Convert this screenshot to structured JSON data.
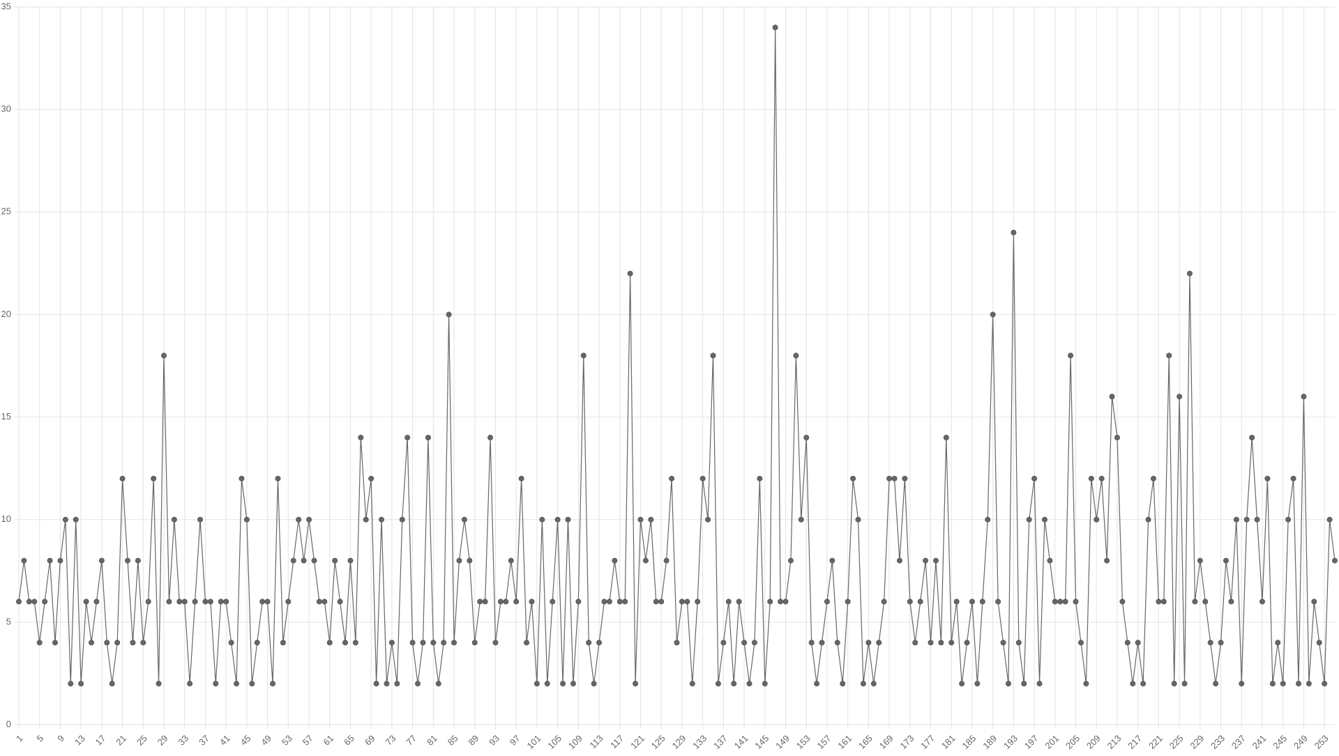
{
  "chart_data": {
    "type": "line",
    "color": "#666666",
    "grid": true,
    "ylim": [
      0,
      35
    ],
    "yticks": [
      0,
      5,
      10,
      15,
      20,
      25,
      30,
      35
    ],
    "categories": [
      1,
      null,
      null,
      null,
      5,
      null,
      null,
      null,
      9,
      null,
      null,
      null,
      13,
      null,
      null,
      null,
      17,
      null,
      null,
      null,
      21,
      null,
      null,
      null,
      25,
      null,
      null,
      null,
      29,
      null,
      null,
      null,
      33,
      null,
      null,
      null,
      37,
      null,
      null,
      null,
      41,
      null,
      null,
      null,
      45,
      null,
      null,
      null,
      49,
      null,
      null,
      null,
      53,
      null,
      null,
      null,
      57,
      null,
      null,
      null,
      61,
      null,
      null,
      null,
      65,
      null,
      null,
      null,
      69,
      null,
      null,
      null,
      73,
      null,
      null,
      null,
      77,
      null,
      null,
      null,
      81,
      null,
      null,
      null,
      85,
      null,
      null,
      null,
      89,
      null,
      null,
      null,
      93,
      null,
      null,
      null,
      97,
      null,
      null,
      null,
      101,
      null,
      null,
      null,
      105,
      null,
      null,
      null,
      109,
      null,
      null,
      null,
      113,
      null,
      null,
      null,
      117,
      null,
      null,
      null,
      121,
      null,
      null,
      null,
      125,
      null,
      null,
      null,
      129,
      null,
      null,
      null,
      133,
      null,
      null,
      null,
      137,
      null,
      null,
      null,
      141,
      null,
      null,
      null,
      145,
      null,
      null,
      null,
      149,
      null,
      null,
      null,
      153,
      null,
      null,
      null,
      157,
      null,
      null,
      null,
      161,
      null,
      null,
      null,
      165,
      null,
      null,
      null,
      169,
      null,
      null,
      null,
      173,
      null,
      null,
      null,
      177,
      null,
      null,
      null,
      181,
      null,
      null,
      null,
      185,
      null,
      null,
      null,
      189,
      null,
      null,
      null,
      193,
      null,
      null,
      null,
      197,
      null,
      null,
      null,
      201,
      null,
      null,
      null,
      205,
      null,
      null,
      null,
      209,
      null,
      null,
      null,
      213,
      null,
      null,
      null,
      217,
      null,
      null,
      null,
      221,
      null,
      null,
      null,
      225,
      null,
      null,
      null,
      229,
      null,
      null,
      null,
      233,
      null,
      null,
      null,
      237,
      null,
      null,
      null,
      241,
      null,
      null,
      null,
      245,
      null,
      null,
      null,
      249,
      null,
      null,
      null,
      253,
      null,
      null
    ],
    "values": [
      6,
      8,
      6,
      6,
      4,
      6,
      8,
      4,
      8,
      10,
      2,
      10,
      2,
      6,
      4,
      6,
      8,
      4,
      2,
      4,
      12,
      8,
      4,
      8,
      4,
      6,
      12,
      2,
      18,
      6,
      10,
      6,
      6,
      2,
      6,
      10,
      6,
      6,
      2,
      6,
      6,
      4,
      2,
      12,
      10,
      2,
      4,
      6,
      6,
      2,
      12,
      4,
      6,
      8,
      10,
      8,
      10,
      8,
      6,
      6,
      4,
      8,
      6,
      4,
      8,
      4,
      14,
      10,
      12,
      2,
      10,
      2,
      4,
      2,
      10,
      14,
      4,
      2,
      4,
      14,
      4,
      2,
      4,
      20,
      4,
      8,
      10,
      8,
      4,
      6,
      6,
      14,
      4,
      6,
      6,
      8,
      6,
      12,
      4,
      6,
      2,
      10,
      2,
      6,
      10,
      2,
      10,
      2,
      6,
      18,
      4,
      2,
      4,
      6,
      6,
      8,
      6,
      6,
      22,
      2,
      10,
      8,
      10,
      6,
      6,
      8,
      12,
      4,
      6,
      6,
      2,
      6,
      12,
      10,
      18,
      2,
      4,
      6,
      2,
      6,
      4,
      2,
      4,
      12,
      2,
      6,
      34,
      6,
      6,
      8,
      18,
      10,
      14,
      4,
      2,
      4,
      6,
      8,
      4,
      2,
      6,
      12,
      10,
      2,
      4,
      2,
      4,
      6,
      12,
      12,
      8,
      12,
      6,
      4,
      6,
      8,
      4,
      8,
      4,
      14,
      4,
      6,
      2,
      4,
      6,
      2,
      6,
      10,
      20,
      6,
      4,
      2,
      24,
      4,
      2,
      10,
      12,
      2,
      10,
      8,
      6,
      6,
      6,
      18,
      6,
      4,
      2,
      12,
      10,
      12,
      8,
      16,
      14,
      6,
      4,
      2,
      4,
      2,
      10,
      12,
      6,
      6,
      18,
      2,
      16,
      2,
      22,
      6,
      8,
      6,
      4,
      2,
      4,
      8,
      6,
      10,
      2,
      10,
      14,
      10,
      6,
      12,
      2,
      4,
      2,
      10,
      12,
      2,
      16,
      2,
      6,
      4,
      2,
      10,
      8
    ]
  }
}
